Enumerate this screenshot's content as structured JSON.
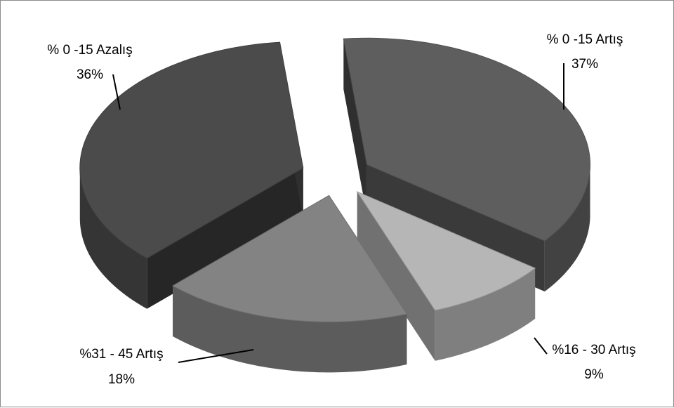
{
  "chart_data": {
    "type": "pie",
    "title": "",
    "style": "3d-exploded",
    "categories": [
      "% 0 -15 Artış",
      "%16 - 30 Artış",
      "%31 - 45 Artış",
      "% 0 -15 Azalış"
    ],
    "values": [
      37,
      9,
      18,
      36
    ],
    "value_labels": [
      "37%",
      "9%",
      "18%",
      "36%"
    ],
    "colors": [
      "#5e5e5e",
      "#b6b6b6",
      "#838383",
      "#4b4b4b"
    ],
    "legend": "none"
  }
}
